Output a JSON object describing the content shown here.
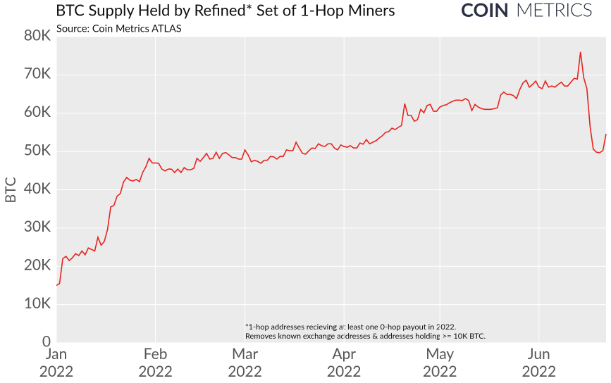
{
  "chart_data": {
    "type": "line",
    "title": "BTC Supply Held by Refined* Set of 1-Hop Miners",
    "subtitle": "Source: Coin Metrics ATLAS",
    "logo": [
      "COIN",
      "METRICS"
    ],
    "ylabel": "BTC",
    "annotation": [
      "*1-hop addresses recieving at least one 0-hop payout in 2022.",
      "Removes known exchange addresses & addresses holding >= 10K BTC."
    ],
    "color": "#e8231e",
    "grid": true,
    "xlim": [
      0,
      172
    ],
    "xticks": [
      {
        "value": 0,
        "label": "Jan 2022"
      },
      {
        "value": 31,
        "label": "Feb 2022"
      },
      {
        "value": 59,
        "label": "Mar 2022"
      },
      {
        "value": 90,
        "label": "Apr 2022"
      },
      {
        "value": 120,
        "label": "May 2022"
      },
      {
        "value": 151,
        "label": "Jun 2022"
      }
    ],
    "ylim": [
      0,
      80000
    ],
    "yticks": [
      0,
      {
        "value": 10000,
        "label": "10K"
      },
      {
        "value": 20000,
        "label": "20K"
      },
      {
        "value": 30000,
        "label": "30K"
      },
      {
        "value": 40000,
        "label": "40K"
      },
      {
        "value": 50000,
        "label": "50K"
      },
      {
        "value": 60000,
        "label": "60K"
      },
      {
        "value": 70000,
        "label": "70K"
      },
      {
        "value": 80000,
        "label": "80K"
      }
    ],
    "values": [
      15000,
      15500,
      22000,
      22600,
      21500,
      22200,
      23300,
      22800,
      24000,
      23000,
      24800,
      24400,
      24000,
      27600,
      25500,
      26500,
      29600,
      35500,
      35900,
      38300,
      39000,
      42000,
      43200,
      42500,
      42300,
      42700,
      42100,
      44500,
      46000,
      48200,
      47000,
      47000,
      46900,
      45400,
      44900,
      45400,
      45400,
      44500,
      45400,
      44500,
      45800,
      45200,
      45200,
      45600,
      48200,
      47400,
      48400,
      49500,
      48000,
      48200,
      49800,
      48200,
      49500,
      49700,
      49100,
      48400,
      48400,
      48000,
      48000,
      50400,
      49100,
      47300,
      47700,
      47400,
      46900,
      47700,
      47700,
      48700,
      48600,
      48000,
      48700,
      48700,
      50400,
      50200,
      50200,
      52400,
      50900,
      49500,
      49300,
      50200,
      50900,
      50800,
      52000,
      51500,
      51300,
      52000,
      52000,
      50900,
      50400,
      51700,
      51300,
      51100,
      51500,
      50900,
      50900,
      52200,
      51900,
      53100,
      52000,
      52400,
      52800,
      53500,
      54100,
      55000,
      55200,
      56100,
      55700,
      56300,
      56800,
      62500,
      59400,
      59400,
      57900,
      58300,
      61000,
      60100,
      62000,
      62300,
      60500,
      60500,
      61600,
      62000,
      62200,
      62700,
      63100,
      63400,
      63400,
      63300,
      63800,
      63300,
      60700,
      62300,
      61600,
      61200,
      61000,
      61000,
      61000,
      61200,
      61400,
      64700,
      65500,
      64900,
      64900,
      64600,
      63800,
      66200,
      67900,
      68600,
      66800,
      67500,
      68400,
      66800,
      66400,
      68400,
      66800,
      67100,
      66800,
      67500,
      68100,
      67100,
      67100,
      68100,
      69100,
      68900,
      76000,
      69300,
      66400,
      56500,
      50600,
      49800,
      49700,
      50200,
      54600
    ]
  }
}
